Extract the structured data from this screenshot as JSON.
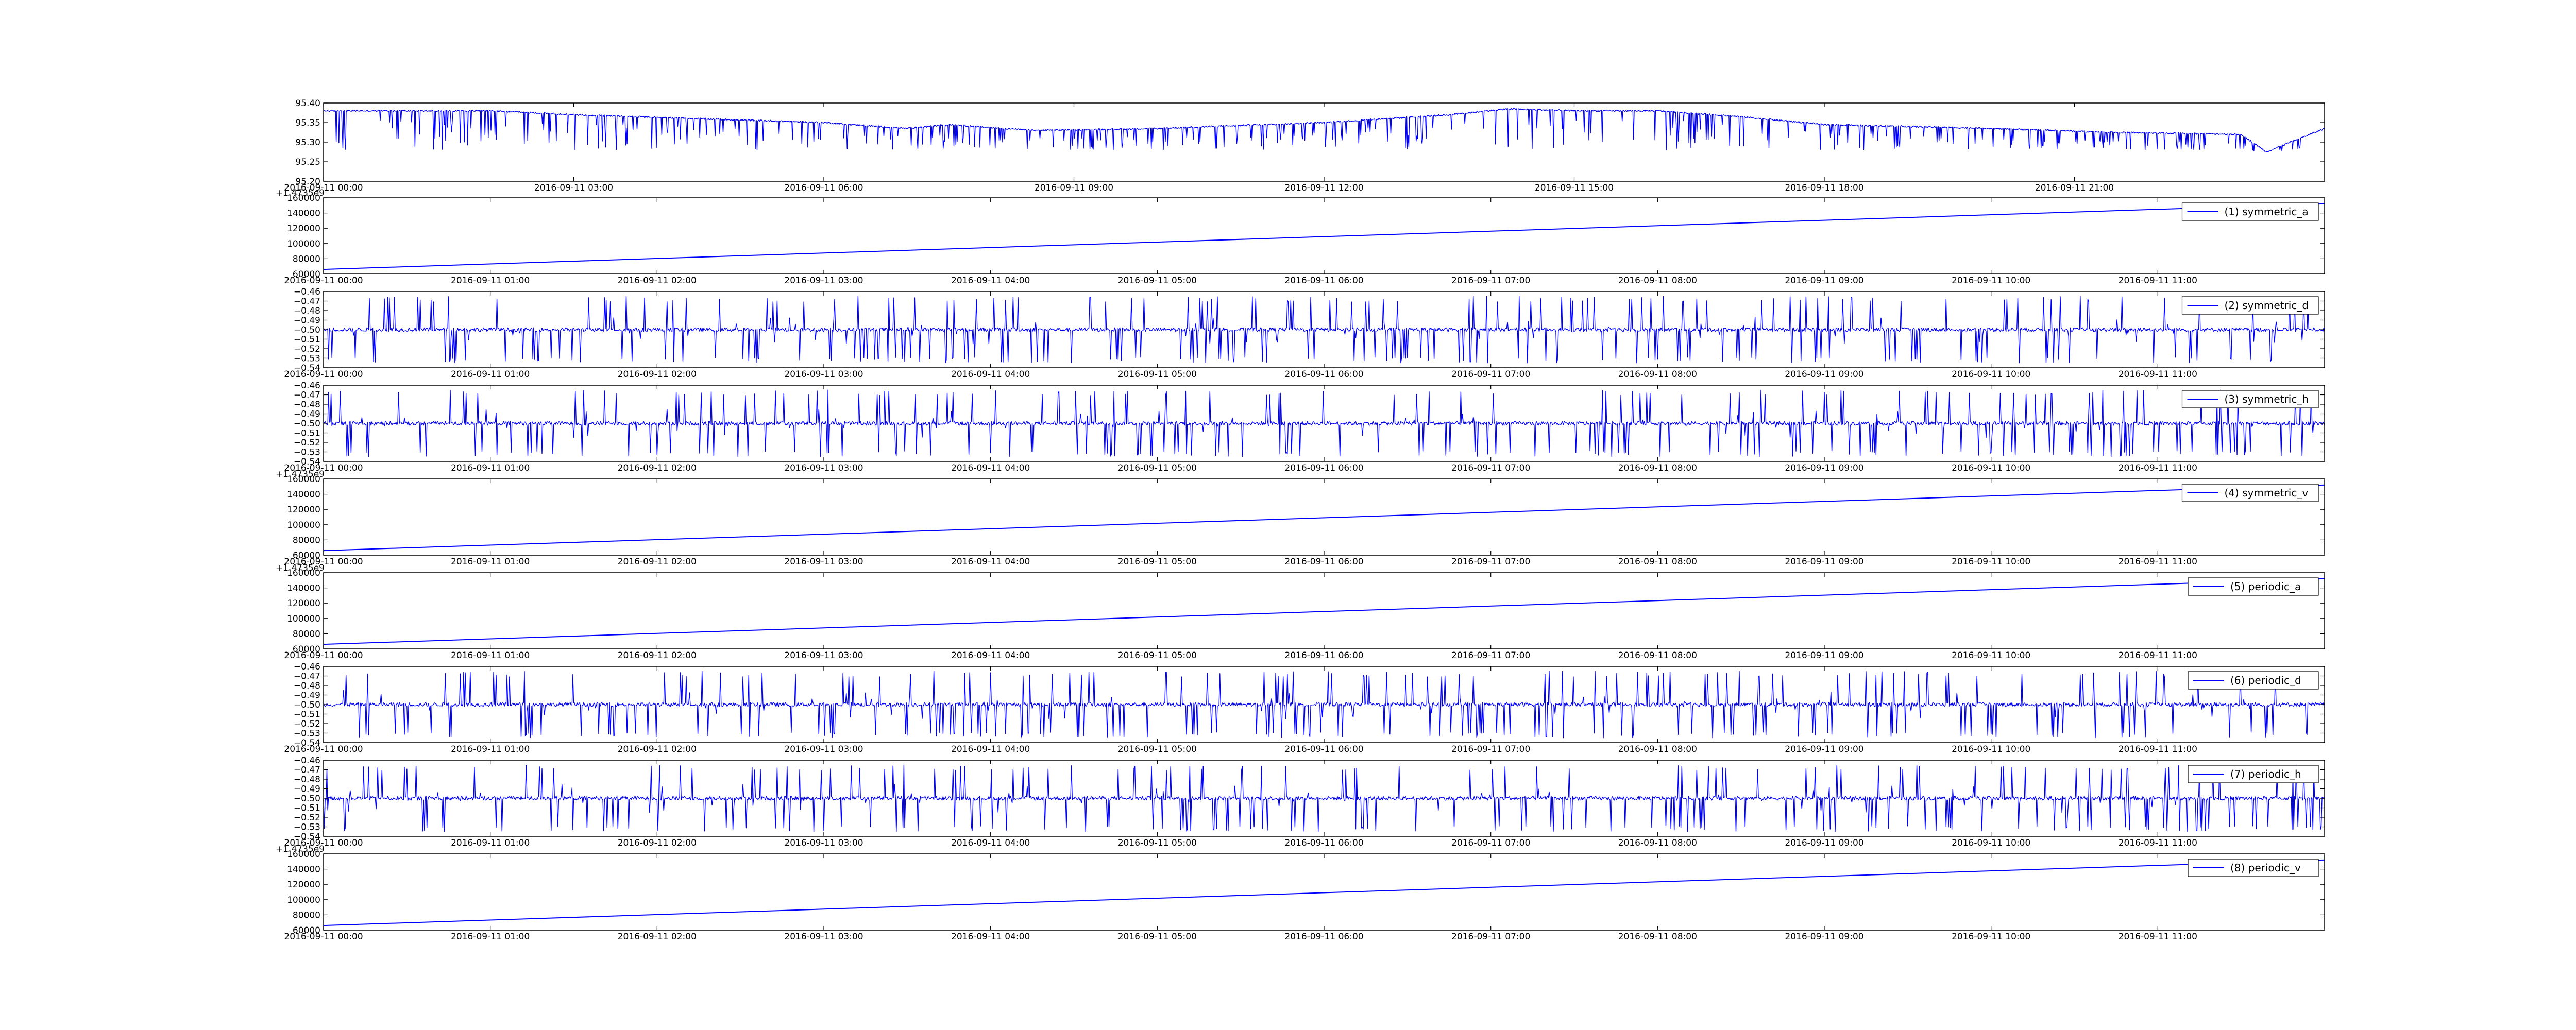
{
  "chart_data": [
    {
      "type": "line",
      "ylim": [
        95.2,
        95.4
      ],
      "yticks": [
        "95.20",
        "95.25",
        "95.30",
        "95.35",
        "95.40"
      ],
      "xticks": [
        "2016-09-11 00:00",
        "2016-09-11 03:00",
        "2016-09-11 06:00",
        "2016-09-11 09:00",
        "2016-09-11 12:00",
        "2016-09-11 15:00",
        "2016-09-11 18:00",
        "2016-09-11 21:00"
      ],
      "xlim_hours": [
        0,
        24
      ],
      "offset_text": "",
      "legend": "",
      "series": [
        {
          "kind": "noisy-baseline",
          "color": "#0000ff",
          "baseline_points": [
            [
              0.0,
              95.38
            ],
            [
              0.3,
              95.38
            ],
            [
              1.0,
              95.38
            ],
            [
              2.0,
              95.38
            ],
            [
              3.0,
              95.37
            ],
            [
              4.5,
              95.36
            ],
            [
              6.0,
              95.35
            ],
            [
              7.0,
              95.335
            ],
            [
              7.5,
              95.345
            ],
            [
              8.5,
              95.33
            ],
            [
              10.0,
              95.335
            ],
            [
              12.0,
              95.35
            ],
            [
              13.5,
              95.37
            ],
            [
              14.2,
              95.385
            ],
            [
              15.0,
              95.38
            ],
            [
              16.0,
              95.38
            ],
            [
              17.0,
              95.365
            ],
            [
              18.0,
              95.345
            ],
            [
              19.0,
              95.34
            ],
            [
              20.0,
              95.335
            ],
            [
              21.5,
              95.325
            ],
            [
              23.0,
              95.32
            ],
            [
              23.3,
              95.275
            ],
            [
              24.0,
              95.335
            ]
          ],
          "spike_low": 95.28
        }
      ]
    },
    {
      "type": "line",
      "ylim": [
        60000,
        160000
      ],
      "yticks": [
        "60000",
        "80000",
        "100000",
        "120000",
        "140000",
        "160000"
      ],
      "xticks": [
        "2016-09-11 00:00",
        "2016-09-11 01:00",
        "2016-09-11 02:00",
        "2016-09-11 03:00",
        "2016-09-11 04:00",
        "2016-09-11 05:00",
        "2016-09-11 06:00",
        "2016-09-11 07:00",
        "2016-09-11 08:00",
        "2016-09-11 09:00",
        "2016-09-11 10:00",
        "2016-09-11 11:00"
      ],
      "xlim_hours": [
        0,
        12
      ],
      "offset_text": "+1.4735e9",
      "legend": "(1) symmetric_a",
      "series": [
        {
          "kind": "linear",
          "color": "#0000ff",
          "start": 66000,
          "end": 152000
        }
      ]
    },
    {
      "type": "line",
      "ylim": [
        -0.54,
        -0.46
      ],
      "yticks": [
        "−0.54",
        "−0.53",
        "−0.52",
        "−0.51",
        "−0.50",
        "−0.49",
        "−0.48",
        "−0.47",
        "−0.46"
      ],
      "xticks": [
        "2016-09-11 00:00",
        "2016-09-11 01:00",
        "2016-09-11 02:00",
        "2016-09-11 03:00",
        "2016-09-11 04:00",
        "2016-09-11 05:00",
        "2016-09-11 06:00",
        "2016-09-11 07:00",
        "2016-09-11 08:00",
        "2016-09-11 09:00",
        "2016-09-11 10:00",
        "2016-09-11 11:00"
      ],
      "xlim_hours": [
        0,
        12
      ],
      "offset_text": "",
      "legend": "(2) symmetric_d",
      "series": [
        {
          "kind": "noisy-symmetric",
          "color": "#0000ff",
          "baseline": -0.5,
          "spike_min": -0.535,
          "spike_max": -0.465
        }
      ]
    },
    {
      "type": "line",
      "ylim": [
        -0.54,
        -0.46
      ],
      "yticks": [
        "−0.54",
        "−0.53",
        "−0.52",
        "−0.51",
        "−0.50",
        "−0.49",
        "−0.48",
        "−0.47",
        "−0.46"
      ],
      "xticks": [
        "2016-09-11 00:00",
        "2016-09-11 01:00",
        "2016-09-11 02:00",
        "2016-09-11 03:00",
        "2016-09-11 04:00",
        "2016-09-11 05:00",
        "2016-09-11 06:00",
        "2016-09-11 07:00",
        "2016-09-11 08:00",
        "2016-09-11 09:00",
        "2016-09-11 10:00",
        "2016-09-11 11:00"
      ],
      "xlim_hours": [
        0,
        12
      ],
      "offset_text": "",
      "legend": "(3) symmetric_h",
      "series": [
        {
          "kind": "noisy-symmetric",
          "color": "#0000ff",
          "baseline": -0.5,
          "spike_min": -0.535,
          "spike_max": -0.465
        }
      ]
    },
    {
      "type": "line",
      "ylim": [
        60000,
        160000
      ],
      "yticks": [
        "60000",
        "80000",
        "100000",
        "120000",
        "140000",
        "160000"
      ],
      "xticks": [
        "2016-09-11 00:00",
        "2016-09-11 01:00",
        "2016-09-11 02:00",
        "2016-09-11 03:00",
        "2016-09-11 04:00",
        "2016-09-11 05:00",
        "2016-09-11 06:00",
        "2016-09-11 07:00",
        "2016-09-11 08:00",
        "2016-09-11 09:00",
        "2016-09-11 10:00",
        "2016-09-11 11:00"
      ],
      "xlim_hours": [
        0,
        12
      ],
      "offset_text": "+1.4735e9",
      "legend": "(4) symmetric_v",
      "series": [
        {
          "kind": "linear",
          "color": "#0000ff",
          "start": 66000,
          "end": 152000
        }
      ]
    },
    {
      "type": "line",
      "ylim": [
        60000,
        160000
      ],
      "yticks": [
        "60000",
        "80000",
        "100000",
        "120000",
        "140000",
        "160000"
      ],
      "xticks": [
        "2016-09-11 00:00",
        "2016-09-11 01:00",
        "2016-09-11 02:00",
        "2016-09-11 03:00",
        "2016-09-11 04:00",
        "2016-09-11 05:00",
        "2016-09-11 06:00",
        "2016-09-11 07:00",
        "2016-09-11 08:00",
        "2016-09-11 09:00",
        "2016-09-11 10:00",
        "2016-09-11 11:00"
      ],
      "xlim_hours": [
        0,
        12
      ],
      "offset_text": "+1.4735e9",
      "legend": "(5) periodic_a",
      "series": [
        {
          "kind": "linear",
          "color": "#0000ff",
          "start": 66000,
          "end": 152000
        }
      ]
    },
    {
      "type": "line",
      "ylim": [
        -0.54,
        -0.46
      ],
      "yticks": [
        "−0.54",
        "−0.53",
        "−0.52",
        "−0.51",
        "−0.50",
        "−0.49",
        "−0.48",
        "−0.47",
        "−0.46"
      ],
      "xticks": [
        "2016-09-11 00:00",
        "2016-09-11 01:00",
        "2016-09-11 02:00",
        "2016-09-11 03:00",
        "2016-09-11 04:00",
        "2016-09-11 05:00",
        "2016-09-11 06:00",
        "2016-09-11 07:00",
        "2016-09-11 08:00",
        "2016-09-11 09:00",
        "2016-09-11 10:00",
        "2016-09-11 11:00"
      ],
      "xlim_hours": [
        0,
        12
      ],
      "offset_text": "",
      "legend": "(6) periodic_d",
      "series": [
        {
          "kind": "noisy-symmetric",
          "color": "#0000ff",
          "baseline": -0.5,
          "spike_min": -0.535,
          "spike_max": -0.465
        }
      ]
    },
    {
      "type": "line",
      "ylim": [
        -0.54,
        -0.46
      ],
      "yticks": [
        "−0.54",
        "−0.53",
        "−0.52",
        "−0.51",
        "−0.50",
        "−0.49",
        "−0.48",
        "−0.47",
        "−0.46"
      ],
      "xticks": [
        "2016-09-11 00:00",
        "2016-09-11 01:00",
        "2016-09-11 02:00",
        "2016-09-11 03:00",
        "2016-09-11 04:00",
        "2016-09-11 05:00",
        "2016-09-11 06:00",
        "2016-09-11 07:00",
        "2016-09-11 08:00",
        "2016-09-11 09:00",
        "2016-09-11 10:00",
        "2016-09-11 11:00"
      ],
      "xlim_hours": [
        0,
        12
      ],
      "offset_text": "",
      "legend": "(7) periodic_h",
      "series": [
        {
          "kind": "noisy-symmetric",
          "color": "#0000ff",
          "baseline": -0.5,
          "spike_min": -0.535,
          "spike_max": -0.465
        }
      ]
    },
    {
      "type": "line",
      "ylim": [
        60000,
        160000
      ],
      "yticks": [
        "60000",
        "80000",
        "100000",
        "120000",
        "140000",
        "160000"
      ],
      "xticks": [
        "2016-09-11 00:00",
        "2016-09-11 01:00",
        "2016-09-11 02:00",
        "2016-09-11 03:00",
        "2016-09-11 04:00",
        "2016-09-11 05:00",
        "2016-09-11 06:00",
        "2016-09-11 07:00",
        "2016-09-11 08:00",
        "2016-09-11 09:00",
        "2016-09-11 10:00",
        "2016-09-11 11:00"
      ],
      "xlim_hours": [
        0,
        12
      ],
      "offset_text": "+1.4735e9",
      "legend": "(8) periodic_v",
      "series": [
        {
          "kind": "linear",
          "color": "#0000ff",
          "start": 66000,
          "end": 152000
        }
      ]
    }
  ]
}
